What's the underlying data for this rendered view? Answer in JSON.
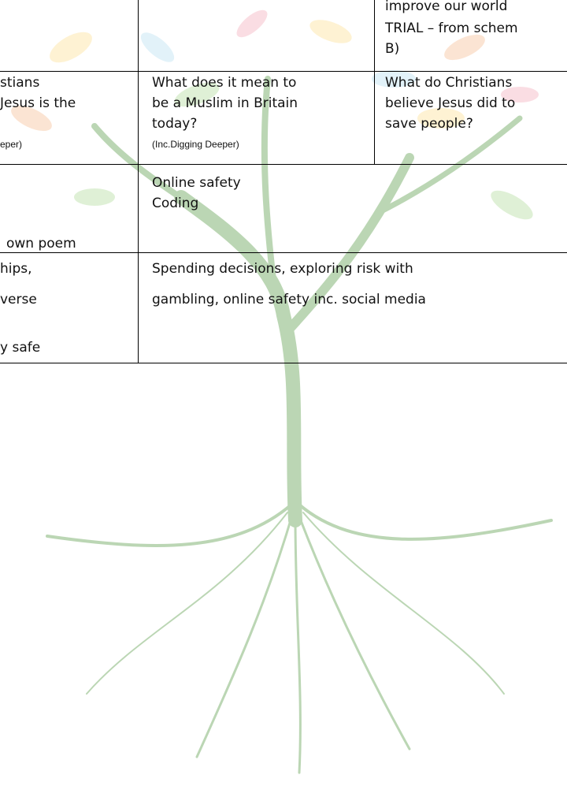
{
  "table": {
    "rows": [
      {
        "left": [],
        "middle": [],
        "right": [
          "improve our world",
          "TRIAL – from schem",
          "B)"
        ]
      },
      {
        "left": [
          "stians",
          "Jesus is the"
        ],
        "left_note": "eper)",
        "middle": [
          "What does it mean to",
          "be a Muslim in Britain",
          "today?"
        ],
        "middle_note": "(Inc.Digging Deeper)",
        "right": [
          "What do Christians",
          "believe Jesus did to",
          "save people?"
        ]
      },
      {
        "left": [
          "own poem"
        ],
        "middle": [
          "Online safety",
          "Coding"
        ]
      },
      {
        "left": [
          "hips,",
          "verse",
          "y safe"
        ],
        "middle": [
          "Spending decisions, exploring risk with",
          "gambling, online safety inc. social media"
        ]
      }
    ]
  }
}
